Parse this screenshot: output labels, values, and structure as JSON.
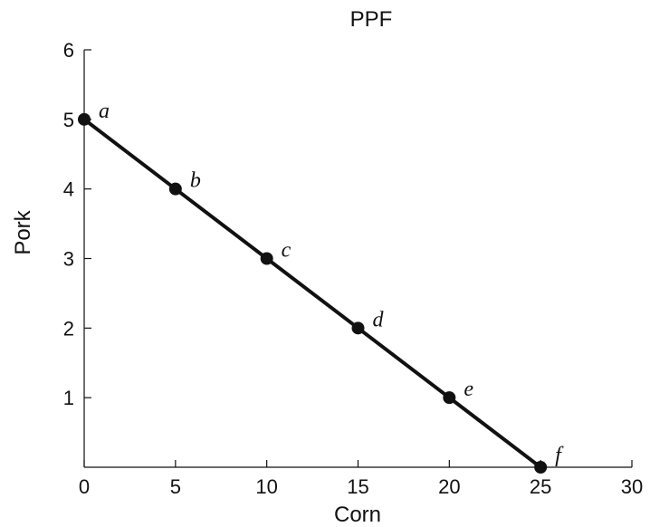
{
  "chart_data": {
    "type": "line",
    "title": "PPF",
    "xlabel": "Corn",
    "ylabel": "Pork",
    "xlim": [
      0,
      30
    ],
    "ylim": [
      0,
      6
    ],
    "x_ticks": [
      "0",
      "5",
      "10",
      "15",
      "20",
      "25",
      "30"
    ],
    "y_ticks": [
      "1",
      "2",
      "3",
      "4",
      "5",
      "6"
    ],
    "grid": false,
    "series": [
      {
        "points": [
          {
            "label": "a",
            "x": 0,
            "y": 5
          },
          {
            "label": "b",
            "x": 5,
            "y": 4
          },
          {
            "label": "c",
            "x": 10,
            "y": 3
          },
          {
            "label": "d",
            "x": 15,
            "y": 2
          },
          {
            "label": "e",
            "x": 20,
            "y": 1
          },
          {
            "label": "f",
            "x": 25,
            "y": 0
          }
        ]
      }
    ]
  }
}
